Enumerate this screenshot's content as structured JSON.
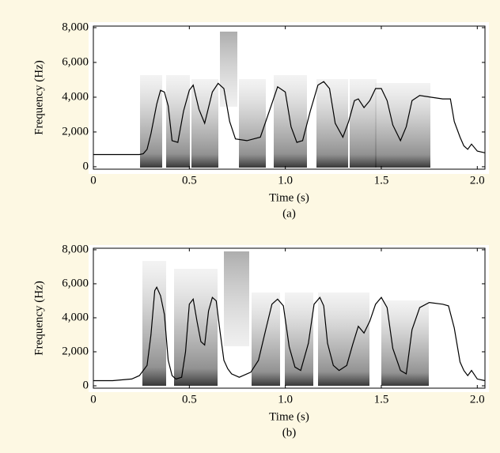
{
  "chart_data": [
    {
      "type": "line",
      "caption": "(a)",
      "x_label": "Time (s)",
      "y_label": "Frequency (Hz)",
      "xlim": [
        0,
        2.04
      ],
      "ylim": [
        -140,
        8090
      ],
      "xticks": [
        0,
        0.5,
        {
          "value": 1,
          "label": "1.0"
        },
        1.5,
        {
          "value": 2,
          "label": "2.0"
        }
      ],
      "yticks": [
        0,
        {
          "value": 2000,
          "label": "2,000"
        },
        {
          "value": 4000,
          "label": "4,000"
        },
        {
          "value": 6000,
          "label": "6,000"
        },
        {
          "value": 8000,
          "label": "8,000"
        }
      ],
      "series": [
        {
          "color": "#000000",
          "x": [
            0,
            0.12,
            0.2,
            0.24,
            0.26,
            0.28,
            0.3,
            0.33,
            0.35,
            0.37,
            0.39,
            0.41,
            0.44,
            0.47,
            0.5,
            0.52,
            0.55,
            0.58,
            0.62,
            0.65,
            0.68,
            0.71,
            0.74,
            0.8,
            0.87,
            0.92,
            0.96,
            1.0,
            1.03,
            1.06,
            1.09,
            1.13,
            1.17,
            1.2,
            1.23,
            1.26,
            1.3,
            1.33,
            1.36,
            1.38,
            1.41,
            1.44,
            1.47,
            1.5,
            1.53,
            1.56,
            1.6,
            1.63,
            1.66,
            1.7,
            1.76,
            1.82,
            1.86,
            1.88,
            1.91,
            1.93,
            1.95,
            1.97,
            2.0,
            2.04
          ],
          "values": [
            700,
            700,
            700,
            700,
            750,
            1000,
            1900,
            3600,
            4400,
            4300,
            3500,
            1500,
            1400,
            3200,
            4400,
            4700,
            3300,
            2500,
            4300,
            4800,
            4500,
            2600,
            1600,
            1500,
            1700,
            3300,
            4600,
            4300,
            2300,
            1400,
            1500,
            3200,
            4700,
            4900,
            4500,
            2500,
            1700,
            2600,
            3800,
            3900,
            3400,
            3800,
            4500,
            4500,
            3800,
            2400,
            1500,
            2300,
            3800,
            4100,
            4000,
            3900,
            3900,
            2600,
            1700,
            1200,
            1000,
            1300,
            900,
            800
          ]
        }
      ]
    },
    {
      "type": "line",
      "caption": "(b)",
      "x_label": "Time (s)",
      "y_label": "Frequency (Hz)",
      "xlim": [
        0,
        2.04
      ],
      "ylim": [
        -140,
        8090
      ],
      "xticks": [
        0,
        0.5,
        {
          "value": 1,
          "label": "1.0"
        },
        1.5,
        {
          "value": 2,
          "label": "2.0"
        }
      ],
      "yticks": [
        0,
        {
          "value": 2000,
          "label": "2,000"
        },
        {
          "value": 4000,
          "label": "4,000"
        },
        {
          "value": 6000,
          "label": "6,000"
        },
        {
          "value": 8000,
          "label": "8,000"
        }
      ],
      "series": [
        {
          "color": "#000000",
          "x": [
            0,
            0.1,
            0.2,
            0.24,
            0.26,
            0.28,
            0.3,
            0.32,
            0.33,
            0.35,
            0.37,
            0.39,
            0.41,
            0.43,
            0.46,
            0.48,
            0.5,
            0.52,
            0.54,
            0.56,
            0.58,
            0.6,
            0.62,
            0.64,
            0.66,
            0.68,
            0.7,
            0.72,
            0.76,
            0.82,
            0.86,
            0.9,
            0.93,
            0.96,
            0.99,
            1.02,
            1.05,
            1.08,
            1.12,
            1.15,
            1.18,
            1.2,
            1.22,
            1.25,
            1.28,
            1.32,
            1.35,
            1.38,
            1.41,
            1.44,
            1.47,
            1.5,
            1.53,
            1.56,
            1.6,
            1.63,
            1.66,
            1.7,
            1.75,
            1.82,
            1.85,
            1.88,
            1.91,
            1.93,
            1.95,
            1.97,
            2.0,
            2.04
          ],
          "values": [
            300,
            300,
            400,
            600,
            900,
            1200,
            3000,
            5600,
            5800,
            5300,
            4200,
            1500,
            600,
            400,
            500,
            2000,
            4800,
            5100,
            3800,
            2600,
            2400,
            4400,
            5200,
            5000,
            3200,
            1500,
            1000,
            700,
            500,
            800,
            1500,
            3400,
            4800,
            5100,
            4700,
            2300,
            1100,
            900,
            2500,
            4800,
            5200,
            4700,
            2500,
            1200,
            900,
            1200,
            2400,
            3500,
            3100,
            3800,
            4800,
            5200,
            4600,
            2200,
            900,
            700,
            3300,
            4600,
            4900,
            4800,
            4700,
            3400,
            1400,
            900,
            600,
            900,
            400,
            300
          ]
        }
      ]
    }
  ]
}
